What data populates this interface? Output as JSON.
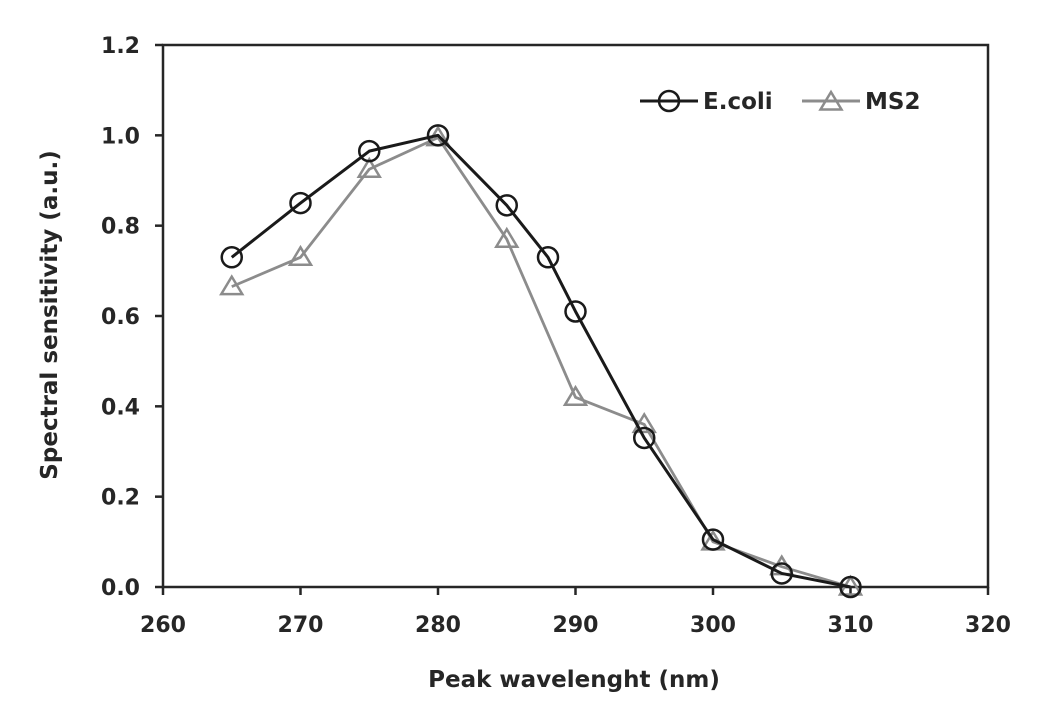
{
  "chart_data": {
    "type": "line",
    "xlabel": "Peak wavelenght (nm)",
    "ylabel": "Spectral sensitivity (a.u.)",
    "xlim": [
      260,
      320
    ],
    "ylim": [
      0,
      1.2
    ],
    "xticks": [
      "260",
      "270",
      "280",
      "290",
      "300",
      "310",
      "320"
    ],
    "yticks": [
      "0.0",
      "0.2",
      "0.4",
      "0.6",
      "0.8",
      "1.0",
      "1.2"
    ],
    "grid": false,
    "legend_position": "top-right",
    "series": [
      {
        "name": "E.coli",
        "marker": "circle",
        "color": "#1a1a1a",
        "points": [
          [
            265,
            0.73
          ],
          [
            270,
            0.85
          ],
          [
            275,
            0.965
          ],
          [
            280,
            1.0
          ],
          [
            285,
            0.845
          ],
          [
            288,
            0.73
          ],
          [
            290,
            0.61
          ],
          [
            295,
            0.33
          ],
          [
            300,
            0.105
          ],
          [
            305,
            0.03
          ],
          [
            310,
            0.0
          ]
        ]
      },
      {
        "name": "MS2",
        "marker": "triangle",
        "color": "#8c8c8c",
        "points": [
          [
            265,
            0.665
          ],
          [
            270,
            0.73
          ],
          [
            275,
            0.925
          ],
          [
            280,
            0.995
          ],
          [
            285,
            0.77
          ],
          [
            290,
            0.42
          ],
          [
            295,
            0.36
          ],
          [
            300,
            0.1
          ],
          [
            305,
            0.045
          ],
          [
            310,
            0.0
          ]
        ]
      }
    ]
  }
}
